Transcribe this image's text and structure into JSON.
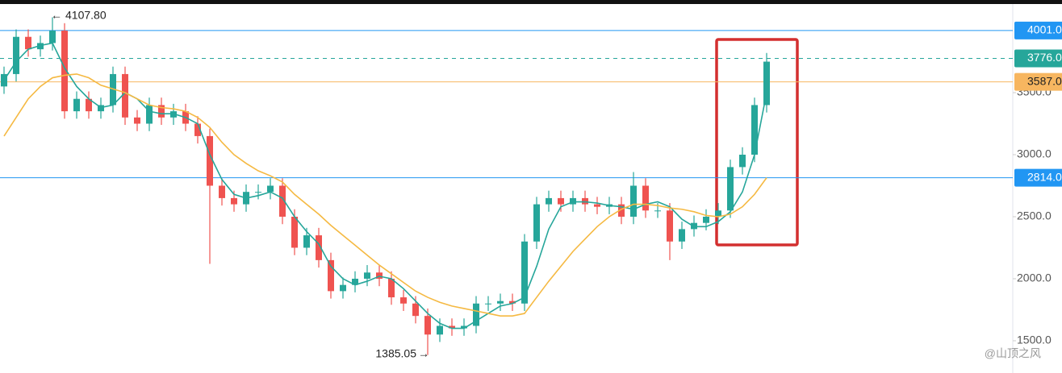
{
  "chart_data": {
    "type": "candlestick",
    "up_color": "#26a69a",
    "down_color": "#ef5350",
    "open": [
      3550,
      3650,
      3950,
      3850,
      3900,
      4000,
      3350,
      3450,
      3350,
      3400,
      3650,
      3300,
      3250,
      3400,
      3300,
      3350,
      3250,
      3150,
      2750,
      2650,
      2600,
      2700,
      2700,
      2750,
      2500,
      2250,
      2350,
      2150,
      1900,
      1950,
      2000,
      2050,
      2000,
      1850,
      1800,
      1700,
      1550,
      1620,
      1600,
      1620,
      1800,
      1800,
      1820,
      1800,
      2300,
      2600,
      2650,
      2600,
      2650,
      2600,
      2580,
      2600,
      2500,
      2750,
      2550,
      2550,
      2300,
      2400,
      2450,
      2500,
      2550,
      2900,
      3000,
      3400
    ],
    "high": [
      3710,
      4010,
      4010,
      3960,
      4107.8,
      4060,
      3510,
      3510,
      3460,
      3710,
      3710,
      3360,
      3460,
      3460,
      3410,
      3410,
      3310,
      3210,
      2810,
      2710,
      2760,
      2760,
      2810,
      2810,
      2560,
      2410,
      2410,
      2210,
      2010,
      2060,
      2110,
      2110,
      2060,
      1910,
      1860,
      1760,
      1680,
      1680,
      1680,
      1860,
      1860,
      1880,
      1880,
      2360,
      2660,
      2710,
      2710,
      2710,
      2710,
      2660,
      2660,
      2660,
      2860,
      2810,
      2610,
      2610,
      2460,
      2510,
      2560,
      2610,
      2960,
      3060,
      3460,
      3820
    ],
    "low": [
      3490,
      3590,
      3790,
      3790,
      3840,
      3290,
      3290,
      3290,
      3290,
      3340,
      3240,
      3190,
      3190,
      3240,
      3240,
      3190,
      3090,
      2120,
      2590,
      2540,
      2540,
      2640,
      2640,
      2440,
      2190,
      2190,
      2090,
      1840,
      1840,
      1890,
      1940,
      1940,
      1790,
      1740,
      1640,
      1385.05,
      1490,
      1540,
      1540,
      1560,
      1740,
      1740,
      1740,
      1740,
      2240,
      2540,
      2540,
      2540,
      2540,
      2520,
      2520,
      2440,
      2440,
      2490,
      2490,
      2150,
      2240,
      2340,
      2390,
      2440,
      2490,
      2840,
      2940,
      3340
    ],
    "close": [
      3650,
      3950,
      3850,
      3900,
      4000,
      3350,
      3450,
      3350,
      3400,
      3650,
      3300,
      3250,
      3400,
      3300,
      3350,
      3250,
      3150,
      2750,
      2650,
      2600,
      2700,
      2700,
      2750,
      2500,
      2250,
      2350,
      2150,
      1900,
      1950,
      2000,
      2050,
      2000,
      1850,
      1800,
      1700,
      1550,
      1620,
      1600,
      1620,
      1800,
      1800,
      1820,
      1800,
      2300,
      2600,
      2650,
      2600,
      2650,
      2600,
      2580,
      2600,
      2500,
      2750,
      2550,
      2550,
      2300,
      2400,
      2450,
      2500,
      2550,
      2900,
      3000,
      3400,
      3750
    ],
    "moving_averages": [
      {
        "color": "#26a69a",
        "values": [
          3600,
          3750,
          3850,
          3880,
          3900,
          3700,
          3550,
          3450,
          3380,
          3400,
          3500,
          3450,
          3350,
          3330,
          3330,
          3300,
          3250,
          3000,
          2800,
          2680,
          2650,
          2670,
          2700,
          2650,
          2500,
          2380,
          2280,
          2100,
          2000,
          1950,
          1980,
          2020,
          2000,
          1920,
          1820,
          1720,
          1640,
          1600,
          1600,
          1660,
          1720,
          1780,
          1800,
          1850,
          2100,
          2400,
          2580,
          2620,
          2620,
          2610,
          2590,
          2580,
          2560,
          2600,
          2620,
          2580,
          2480,
          2420,
          2420,
          2460,
          2540,
          2700,
          3000,
          3500
        ]
      },
      {
        "color": "#f5b942",
        "values": [
          3150,
          3300,
          3450,
          3550,
          3620,
          3640,
          3650,
          3620,
          3560,
          3530,
          3500,
          3450,
          3400,
          3380,
          3370,
          3350,
          3300,
          3220,
          3100,
          3000,
          2930,
          2870,
          2830,
          2780,
          2680,
          2600,
          2520,
          2430,
          2350,
          2270,
          2190,
          2110,
          2040,
          1970,
          1900,
          1850,
          1810,
          1780,
          1760,
          1740,
          1720,
          1700,
          1700,
          1720,
          1850,
          1980,
          2100,
          2220,
          2320,
          2420,
          2500,
          2560,
          2600,
          2600,
          2590,
          2570,
          2560,
          2540,
          2510,
          2500,
          2520,
          2580,
          2680,
          2814
        ]
      }
    ],
    "ylim": [
      1240,
      4247
    ],
    "yticks": [
      {
        "value": 3500,
        "label": "3500.0"
      },
      {
        "value": 3000,
        "label": "3000.0"
      },
      {
        "value": 2500,
        "label": "2500.0"
      },
      {
        "value": 2000,
        "label": "2000.0"
      },
      {
        "value": 1500,
        "label": "1500.0"
      }
    ],
    "levels": [
      {
        "value": 4001,
        "label": "4001.0",
        "color": "#2196f3",
        "dashed": false
      },
      {
        "value": 3776,
        "label": "3776.0",
        "color": "#26a69a",
        "dashed": true
      },
      {
        "value": 3587,
        "label": "3587.0",
        "color": "#f7b660",
        "dashed": false
      },
      {
        "value": 2814,
        "label": "2814.0",
        "color": "#2196f3",
        "dashed": false
      }
    ],
    "high_label": "4107.80",
    "low_label": "1385.05",
    "watermark": "@山顶之风"
  }
}
